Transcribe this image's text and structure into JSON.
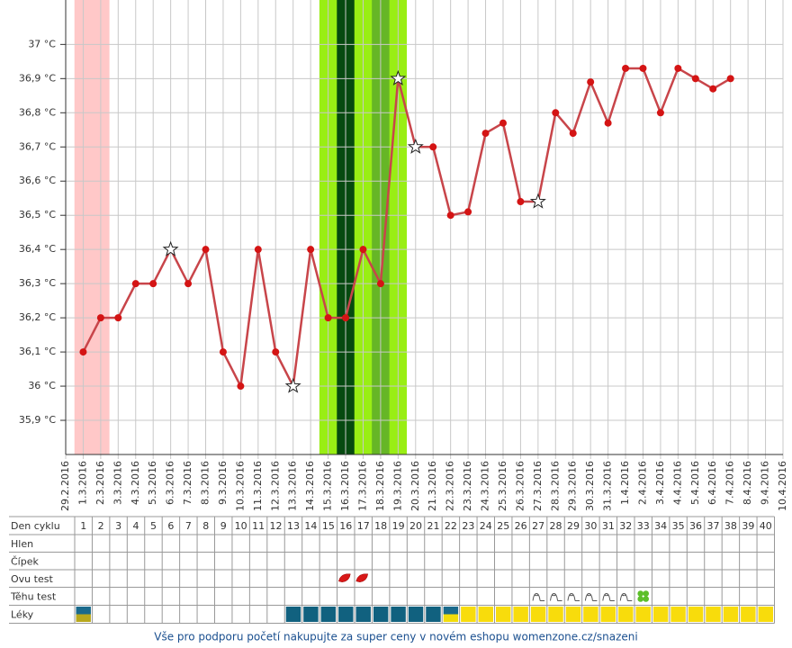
{
  "chart_data": {
    "type": "line",
    "categories": [
      "29.2.2016",
      "1.3.2016",
      "2.3.2016",
      "3.3.2016",
      "4.3.2016",
      "5.3.2016",
      "6.3.2016",
      "7.3.2016",
      "8.3.2016",
      "9.3.2016",
      "10.3.2016",
      "11.3.2016",
      "12.3.2016",
      "13.3.2016",
      "14.3.2016",
      "15.3.2016",
      "16.3.2016",
      "17.3.2016",
      "18.3.2016",
      "19.3.2016",
      "20.3.2016",
      "21.3.2016",
      "22.3.2016",
      "23.3.2016",
      "24.3.2016",
      "25.3.2016",
      "26.3.2016",
      "27.3.2016",
      "28.3.2016",
      "29.3.2016",
      "30.3.2016",
      "31.3.2016",
      "1.4.2016",
      "2.4.2016",
      "3.4.2016",
      "4.4.2016",
      "5.4.2016",
      "6.4.2016",
      "7.4.2016",
      "8.4.2016",
      "9.4.2016",
      "10.4.2016"
    ],
    "series": [
      {
        "color": "#c8454a",
        "point_color": "#d41414",
        "values": [
          null,
          36.1,
          36.2,
          36.2,
          36.3,
          36.3,
          36.4,
          36.3,
          36.4,
          36.1,
          36.0,
          36.4,
          36.1,
          36.0,
          36.4,
          36.2,
          36.2,
          36.4,
          36.3,
          36.9,
          36.7,
          36.7,
          36.5,
          36.51,
          36.74,
          36.77,
          36.54,
          36.54,
          36.8,
          36.74,
          36.89,
          36.77,
          36.93,
          36.93,
          36.8,
          36.93,
          36.9,
          36.87,
          36.9,
          null,
          null,
          null
        ],
        "markers": [
          null,
          "dot",
          "dot",
          "dot",
          "dot",
          "dot",
          "star",
          "dot",
          "dot",
          "dot",
          "dot",
          "dot",
          "dot",
          "star",
          "dot",
          "dot",
          "dot",
          "dot",
          "dot",
          "star",
          "star",
          "dot",
          "dot",
          "dot",
          "dot",
          "dot",
          "dot",
          "star",
          "dot",
          "dot",
          "dot",
          "dot",
          "dot",
          "dot",
          "dot",
          "dot",
          "dot",
          "dot",
          "dot",
          null,
          null,
          null
        ]
      }
    ],
    "ylim": [
      35.8,
      37.13
    ],
    "yticks": [
      {
        "value": 35.9,
        "label": "35,9 °C"
      },
      {
        "value": 36.0,
        "label": "36 °C"
      },
      {
        "value": 36.1,
        "label": "36,1 °C"
      },
      {
        "value": 36.2,
        "label": "36,2 °C"
      },
      {
        "value": 36.3,
        "label": "36,3 °C"
      },
      {
        "value": 36.4,
        "label": "36,4 °C"
      },
      {
        "value": 36.5,
        "label": "36,5 °C"
      },
      {
        "value": 36.6,
        "label": "36,6 °C"
      },
      {
        "value": 36.7,
        "label": "36,7 °C"
      },
      {
        "value": 36.8,
        "label": "36,8 °C"
      },
      {
        "value": 36.9,
        "label": "36,9 °C"
      },
      {
        "value": 37.0,
        "label": "37 °C"
      }
    ],
    "grid": true,
    "bands": [
      {
        "from": "1.3.2016",
        "to": "2.3.2016",
        "color": "#ffc8c8"
      },
      {
        "from": "15.3.2016",
        "to": "19.3.2016",
        "color": "#99ee14"
      },
      {
        "from": "16.3.2016",
        "to": "16.3.2016",
        "color": "#064a10"
      },
      {
        "from": "18.3.2016",
        "to": "18.3.2016",
        "color": "#66b626"
      }
    ]
  },
  "table": {
    "row_labels": [
      "Den cyklu",
      "Hlen",
      "Čípek",
      "Ovu test",
      "Těhu test",
      "Léky"
    ],
    "days": [
      1,
      2,
      3,
      4,
      5,
      6,
      7,
      8,
      9,
      10,
      11,
      12,
      13,
      14,
      15,
      16,
      17,
      18,
      19,
      20,
      21,
      22,
      23,
      24,
      25,
      26,
      27,
      28,
      29,
      30,
      31,
      32,
      33,
      34,
      35,
      36,
      37,
      38,
      39,
      40
    ],
    "ovu_test": [
      null,
      null,
      null,
      null,
      null,
      null,
      null,
      null,
      null,
      null,
      null,
      null,
      null,
      null,
      null,
      "drop",
      "drop",
      null,
      null,
      null,
      null,
      null,
      null,
      null,
      null,
      null,
      null,
      null,
      null,
      null,
      null,
      null,
      null,
      null,
      null,
      null,
      null,
      null,
      null,
      null
    ],
    "tehu_test": [
      null,
      null,
      null,
      null,
      null,
      null,
      null,
      null,
      null,
      null,
      null,
      null,
      null,
      null,
      null,
      null,
      null,
      null,
      null,
      null,
      null,
      null,
      null,
      null,
      null,
      null,
      "neg",
      "neg",
      "neg",
      "neg",
      "neg",
      "neg",
      "clover",
      null,
      null,
      null,
      null,
      null,
      null,
      null
    ],
    "leky": [
      [
        "#1a6a8c",
        "#b8a81c"
      ],
      null,
      null,
      null,
      null,
      null,
      null,
      null,
      null,
      null,
      null,
      null,
      [
        "#11617f"
      ],
      [
        "#11617f"
      ],
      [
        "#11617f"
      ],
      [
        "#11617f"
      ],
      [
        "#11617f"
      ],
      [
        "#11617f"
      ],
      [
        "#11617f"
      ],
      [
        "#11617f"
      ],
      [
        "#11617f"
      ],
      [
        "#1a6a8c",
        "#f2dc0a"
      ],
      [
        "#f8dc0c"
      ],
      [
        "#f8dc0c"
      ],
      [
        "#f8dc0c"
      ],
      [
        "#f8dc0c"
      ],
      [
        "#f8dc0c"
      ],
      [
        "#f8dc0c"
      ],
      [
        "#f8dc0c"
      ],
      [
        "#f8dc0c"
      ],
      [
        "#f8dc0c"
      ],
      [
        "#f8dc0c"
      ],
      [
        "#f8dc0c"
      ],
      [
        "#f8dc0c"
      ],
      [
        "#f8dc0c"
      ],
      [
        "#f8dc0c"
      ],
      [
        "#f8dc0c"
      ],
      [
        "#f8dc0c"
      ],
      [
        "#f8dc0c"
      ],
      [
        "#f8dc0c"
      ]
    ]
  },
  "footer": "Vše pro podporu početí nakupujte za super ceny v novém eshopu womenzone.cz/snazeni"
}
